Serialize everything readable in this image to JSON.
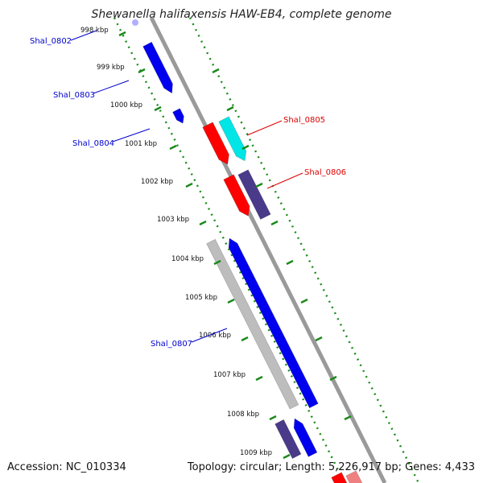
{
  "title": "Shewanella halifaxensis HAW-EB4, complete genome",
  "footer": {
    "accession": "Accession: NC_010334",
    "summary": "Topology: circular; Length: 5,226,917 bp; Genes: 4,433"
  },
  "colors": {
    "backbone": "#888888",
    "ruler": "#1a8a1a",
    "forward_gene": "#0000ee",
    "reverse_gene": "#ff0000",
    "label_forward": "#0000cc",
    "label_reverse": "#dd0000",
    "cyan_gene": "#00e5e5",
    "purple_gene": "#4a3a8a",
    "gray_gene": "#bdbdbd"
  },
  "ticks": [
    "998 kbp",
    "999 kbp",
    "1000 kbp",
    "1001 kbp",
    "1002 kbp",
    "1003 kbp",
    "1004 kbp",
    "1005 kbp",
    "1006 kbp",
    "1007 kbp",
    "1008 kbp",
    "1009 kbp"
  ],
  "gene_labels": [
    {
      "text": "Shal_0802",
      "side": "left"
    },
    {
      "text": "Shal_0803",
      "side": "left"
    },
    {
      "text": "Shal_0804",
      "side": "left"
    },
    {
      "text": "Shal_0805",
      "side": "right"
    },
    {
      "text": "Shal_0806",
      "side": "right"
    },
    {
      "text": "Shal_0807",
      "side": "left"
    }
  ]
}
